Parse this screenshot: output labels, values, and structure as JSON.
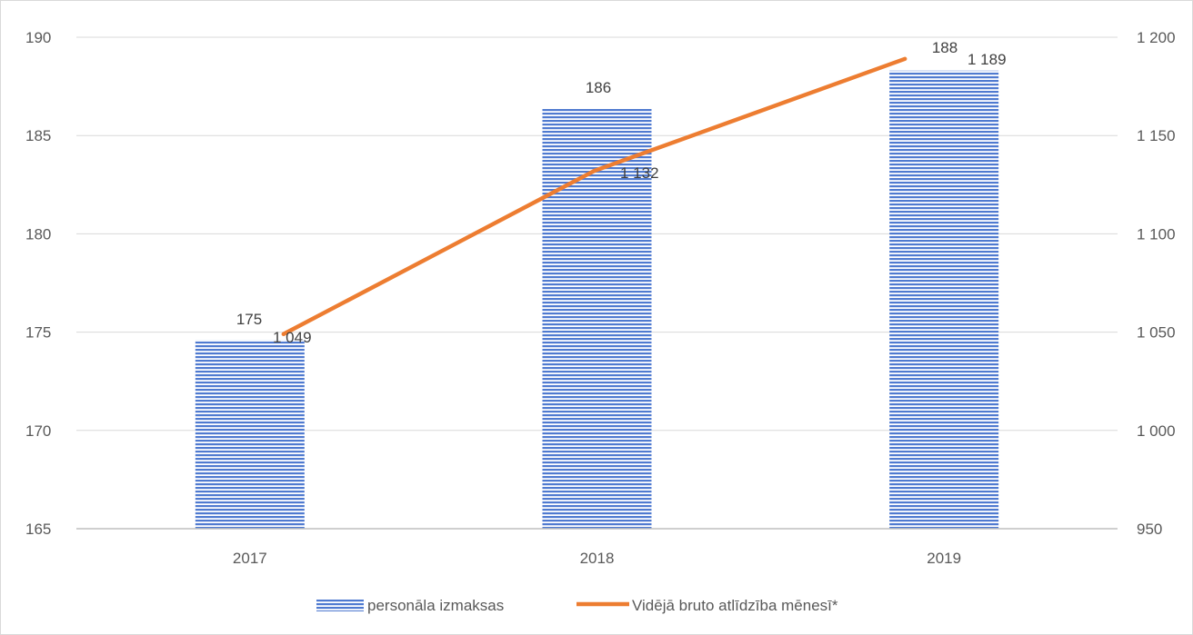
{
  "chart_data": {
    "type": "bar",
    "categories": [
      "2017",
      "2018",
      "2019"
    ],
    "series": [
      {
        "name": "personāla izmaksas",
        "type": "bar",
        "axis": "left",
        "values": [
          174.6,
          186.4,
          188.3
        ],
        "labels": [
          "175",
          "186",
          "188"
        ],
        "color": "#4472c4"
      },
      {
        "name": "Vidējā bruto atlīdzība mēnesī*",
        "type": "line",
        "axis": "right",
        "values": [
          1049,
          1132,
          1189
        ],
        "labels": [
          "1 049",
          "1 132",
          "1 189"
        ],
        "color": "#ed7d31"
      }
    ],
    "y_left": {
      "min": 165,
      "max": 190,
      "ticks": [
        165,
        170,
        175,
        180,
        185,
        190
      ],
      "tick_labels": [
        "165",
        "170",
        "175",
        "180",
        "185",
        "190"
      ]
    },
    "y_right": {
      "min": 950,
      "max": 1200,
      "ticks": [
        950,
        1000,
        1050,
        1100,
        1150,
        1200
      ],
      "tick_labels": [
        "950",
        "1 000",
        "1 050",
        "1 100",
        "1 150",
        "1 200"
      ]
    },
    "grid": true,
    "legend_position": "bottom"
  }
}
